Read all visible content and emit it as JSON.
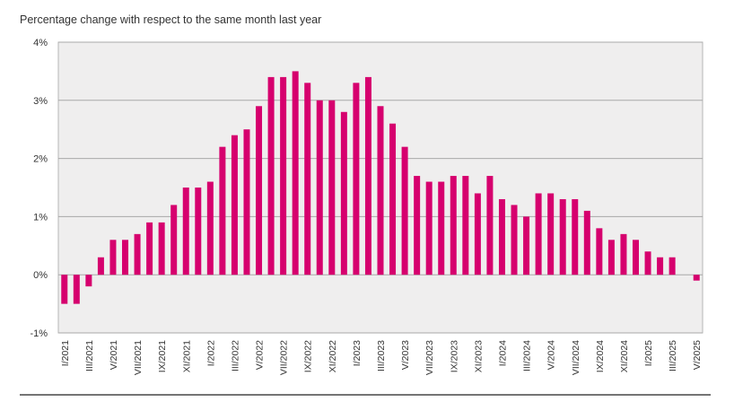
{
  "chart_data": {
    "type": "bar",
    "title": "Percentage change with respect to the same month last year",
    "xlabel": "",
    "ylabel": "",
    "ylim": [
      -1,
      4
    ],
    "yticks": [
      "4%",
      "3%",
      "2%",
      "1%",
      "0%",
      "-1%"
    ],
    "grid": true,
    "bar_color": "#d6006e",
    "plot_background": "#efeeee",
    "categories": [
      "I/2021",
      "II/2021",
      "III/2021",
      "IV/2021",
      "V/2021",
      "VI/2021",
      "VII/2021",
      "VIII/2021",
      "IX/2021",
      "X/2021",
      "XI/2021",
      "XII/2021",
      "I/2022",
      "II/2022",
      "III/2022",
      "IV/2022",
      "V/2022",
      "VI/2022",
      "VII/2022",
      "VIII/2022",
      "IX/2022",
      "X/2022",
      "XI/2022",
      "XII/2022",
      "I/2023",
      "II/2023",
      "III/2023",
      "IV/2023",
      "V/2023",
      "VI/2023",
      "VII/2023",
      "VIII/2023",
      "IX/2023",
      "X/2023",
      "XI/2023",
      "XII/2023",
      "I/2024",
      "II/2024",
      "III/2024",
      "IV/2024",
      "V/2024",
      "VI/2024",
      "VII/2024",
      "VIII/2024",
      "IX/2024",
      "X/2024",
      "XI/2024",
      "XII/2024",
      "I/2025",
      "II/2025",
      "III/2025",
      "IV/2025",
      "V/2025"
    ],
    "tick_labels_shown": [
      "I/2021",
      "III/2021",
      "V/2021",
      "VII/2021",
      "IX/2021",
      "XI/2021",
      "I/2022",
      "III/2022",
      "V/2022",
      "VII/2022",
      "IX/2022",
      "XI/2022",
      "I/2023",
      "III/2023",
      "V/2023",
      "VII/2023",
      "IX/2023",
      "XI/2023",
      "I/2024",
      "III/2024",
      "V/2024",
      "VII/2024",
      "IX/2024",
      "XI/2024",
      "I/2025",
      "III/2025",
      "V/2025"
    ],
    "values": [
      -0.5,
      -0.5,
      -0.2,
      0.3,
      0.6,
      0.6,
      0.7,
      0.9,
      0.9,
      1.2,
      1.5,
      1.5,
      1.6,
      2.2,
      2.4,
      2.5,
      2.9,
      3.4,
      3.4,
      3.5,
      3.3,
      3.0,
      3.0,
      2.8,
      3.3,
      3.4,
      2.9,
      2.6,
      2.2,
      1.7,
      1.6,
      1.6,
      1.7,
      1.7,
      1.4,
      1.7,
      1.3,
      1.2,
      1.0,
      1.4,
      1.4,
      1.3,
      1.3,
      1.1,
      0.8,
      0.6,
      0.7,
      0.6,
      0.4,
      0.3,
      0.3,
      null,
      -0.1
    ]
  }
}
